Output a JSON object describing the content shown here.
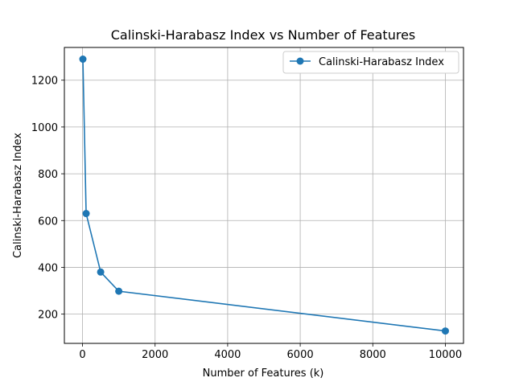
{
  "chart_data": {
    "type": "line",
    "title": "Calinski-Harabasz Index vs Number of Features",
    "xlabel": "Number of Features (k)",
    "ylabel": "Calinski-Harabasz Index",
    "xlim": [
      -500,
      10500
    ],
    "ylim": [
      75,
      1340
    ],
    "xticks": [
      0,
      2000,
      4000,
      6000,
      8000,
      10000
    ],
    "xtick_labels": [
      "0",
      "2000",
      "4000",
      "6000",
      "8000",
      "10000"
    ],
    "yticks": [
      200,
      400,
      600,
      800,
      1000,
      1200
    ],
    "ytick_labels": [
      "200",
      "400",
      "600",
      "800",
      "1000",
      "1200"
    ],
    "grid": true,
    "legend_position": "top-right",
    "series": [
      {
        "name": "Calinski-Harabasz Index",
        "color": "#1f77b4",
        "marker": "circle",
        "x": [
          10,
          100,
          500,
          1000,
          10000
        ],
        "y": [
          1290,
          630,
          380,
          298,
          128
        ]
      }
    ]
  }
}
